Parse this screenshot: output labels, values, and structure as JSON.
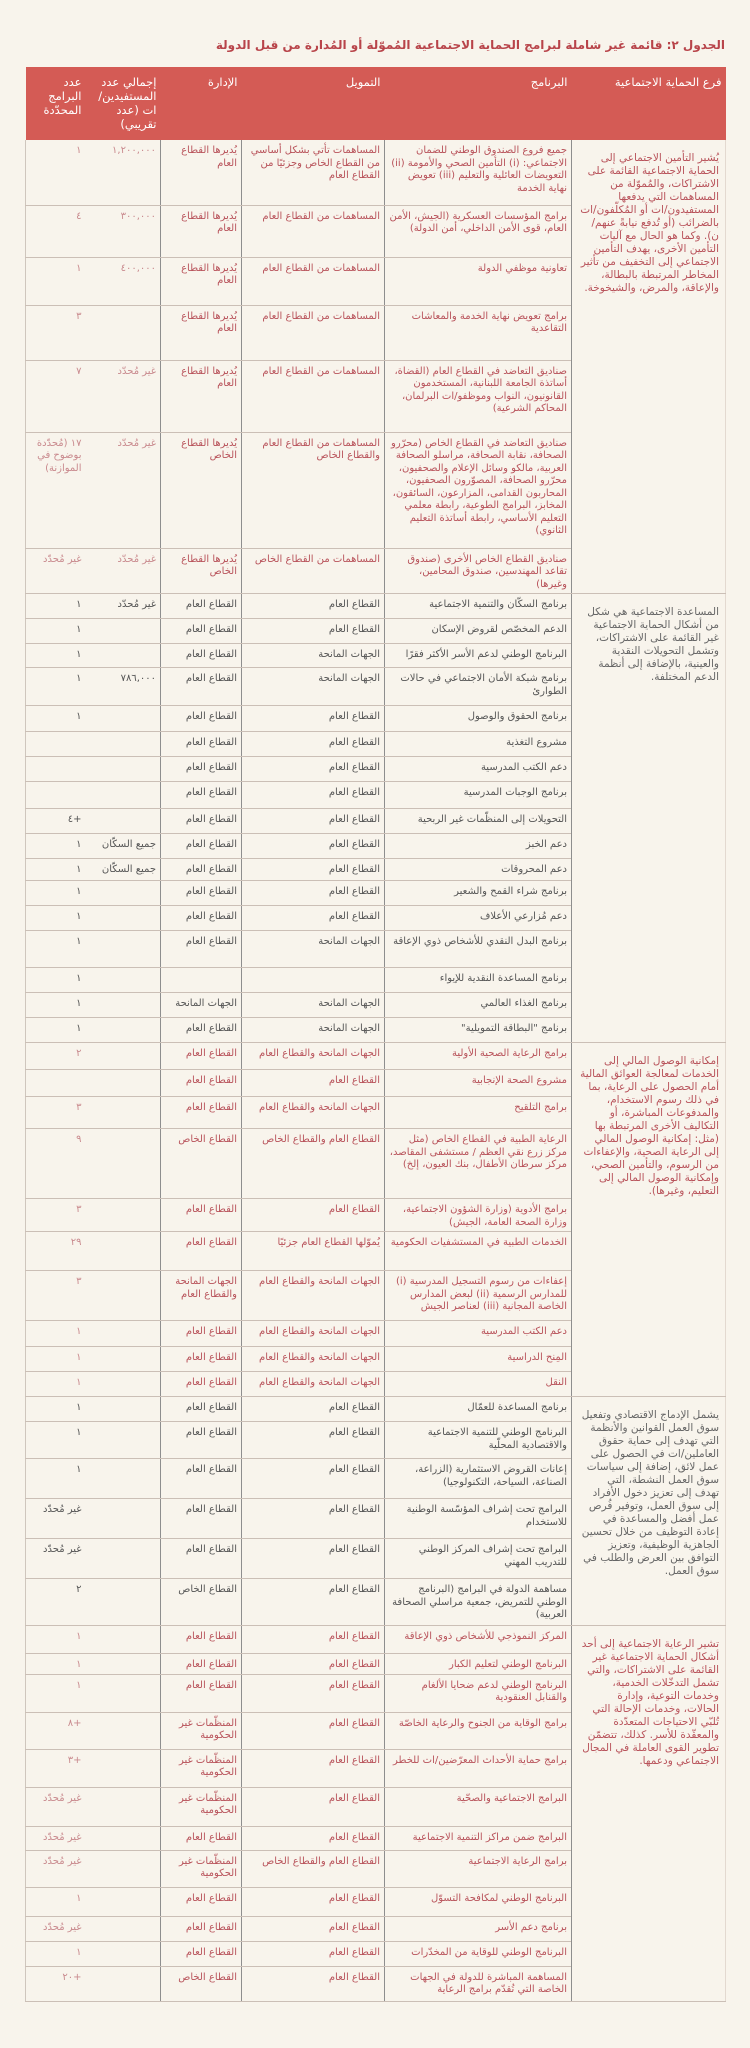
{
  "title": "الجدول ٢: قائمة غير شاملة لبرامج الحماية الاجتماعية المُموّلة أو المُدارة من قبل الدولة",
  "colors": {
    "header_bg": "#d45b55",
    "accent_text": "#b8444a",
    "page_bg": "#f8f4ec"
  },
  "headers": {
    "branch": "فرع الحماية الاجتماعية",
    "program": "البرنامج",
    "funding": "التمويل",
    "admin": "الإدارة",
    "beneficiaries": "إجمالي عدد المستفيدين/ات (عدد تقريبي)",
    "count": "عدد البرامج المحدّدة"
  },
  "groups": [
    {
      "branch": "يُشير التأمين الاجتماعي إلى الحماية الاجتماعية القائمة على الاشتراكات، والمُموّلة من المساهمات التي يدفعها المستفيدون/ات أو المُكلّفون/ات بالضرائب (أو تُدفع نيابةً عنهم/ن). وكما هو الحال مع آليات التأمين الأخرى، يهدف التأمين الاجتماعي إلى التخفيف من تأثير المخاطر المرتبطة بالبطالة، والإعاقة، والمرض، والشيخوخة.",
      "tone": "rose",
      "rows": [
        {
          "program": "جميع فروع الصندوق الوطني للضمان الاجتماعي: (i) التأمين الصحي والأمومة (ii) التعويضات العائلية والتعليم (iii) تعويض نهاية الخدمة",
          "funding": "المساهمات تأتي بشكل أساسي من القطاع الخاص وجزئيًا من القطاع العام",
          "admin": "يُديرها القطاع العام",
          "beneficiaries": "١,٢٠٠,٠٠٠",
          "count": "١"
        },
        {
          "program": "برامج المؤسسات العسكرية (الجيش، الأمن العام، قوى الأمن الداخلي، أمن الدولة)",
          "funding": "المساهمات من القطاع العام",
          "admin": "يُديرها القطاع العام",
          "beneficiaries": "٣٠٠,٠٠٠",
          "count": "٤"
        },
        {
          "program": "تعاونية موظفي الدولة",
          "funding": "المساهمات من القطاع العام",
          "admin": "يُديرها القطاع العام",
          "beneficiaries": "٤٠٠,٠٠٠",
          "count": "١"
        },
        {
          "program": "برامج تعويض نهاية الخدمة والمعاشات التقاعدية",
          "funding": "المساهمات من القطاع العام",
          "admin": "يُديرها القطاع العام",
          "beneficiaries": "",
          "count": "٣"
        },
        {
          "program": "صناديق التعاضد في القطاع العام (القضاة، أساتذة الجامعة اللبنانية، المستخدمون القانونيون، النواب وموظفو/ات البرلمان، المحاكم الشرعية)",
          "funding": "المساهمات من القطاع العام",
          "admin": "يُديرها القطاع العام",
          "beneficiaries": "غير مُحدّد",
          "count": "٧"
        },
        {
          "program": "صناديق التعاضد في القطاع الخاص (محرّرو الصحافة، نقابة الصحافة، مراسلو الصحافة العربية، مالكو وسائل الإعلام والصحفيون، محرّرو الصحافة، المصوّرون الصحفيون، المحاربون القدامى، المزارعون، السائقون، المخابز، البرامج الطوعية، رابطة معلمي التعليم الأساسي، رابطة أساتذة التعليم الثانوي)",
          "funding": "المساهمات من القطاع العام والقطاع الخاص",
          "admin": "يُديرها القطاع الخاص",
          "beneficiaries": "غير مُحدّد",
          "count": "١٧ (مُحدّدة بوضوح في الموازنة)"
        },
        {
          "program": "صناديق القطاع الخاص الأخرى (صندوق تقاعد المهندسين، صندوق المحامين، وغيرها)",
          "funding": "المساهمات من القطاع الخاص",
          "admin": "يُديرها القطاع الخاص",
          "beneficiaries": "غير مُحدّد",
          "count": "غير مُحدّد"
        }
      ]
    },
    {
      "branch": "المساعدة الاجتماعية هي شكل من أشكال الحماية الاجتماعية غير القائمة على الاشتراكات، وتشمل التحويلات النقدية والعينية، بالإضافة إلى أنظمة الدعم المختلفة.",
      "tone": "dark",
      "rows": [
        {
          "program": "برنامج السكّان والتنمية الاجتماعية",
          "funding": "القطاع العام",
          "admin": "القطاع العام",
          "beneficiaries": "غير مُحدّد",
          "count": "١"
        },
        {
          "program": "الدعم المخصّص لقروض الإسكان",
          "funding": "القطاع العام",
          "admin": "القطاع العام",
          "beneficiaries": "",
          "count": "١"
        },
        {
          "program": "البرنامج الوطني لدعم الأسر الأكثر فقرًا",
          "funding": "الجهات المانحة",
          "admin": "القطاع العام",
          "beneficiaries": "",
          "count": "١"
        },
        {
          "program": "برنامج شبكة الأمان الاجتماعي في حالات الطوارئ",
          "funding": "الجهات المانحة",
          "admin": "القطاع العام",
          "beneficiaries": "٧٨٦,٠٠٠",
          "count": "١"
        },
        {
          "program": "برنامج الحقوق والوصول",
          "funding": "القطاع العام",
          "admin": "القطاع العام",
          "beneficiaries": "",
          "count": "١"
        },
        {
          "program": "مشروع التغذية",
          "funding": "القطاع العام",
          "admin": "القطاع العام",
          "beneficiaries": "",
          "count": ""
        },
        {
          "program": "دعم الكتب المدرسية",
          "funding": "القطاع العام",
          "admin": "القطاع العام",
          "beneficiaries": "",
          "count": ""
        },
        {
          "program": "برنامج الوجبات المدرسية",
          "funding": "القطاع العام",
          "admin": "القطاع العام",
          "beneficiaries": "",
          "count": ""
        },
        {
          "program": "التحويلات إلى المنظّمات غير الربحية",
          "funding": "القطاع العام",
          "admin": "القطاع العام",
          "beneficiaries": "",
          "count": "+٤"
        },
        {
          "program": "دعم الخبز",
          "funding": "القطاع العام",
          "admin": "القطاع العام",
          "beneficiaries": "جميع السكّان",
          "count": "١"
        },
        {
          "program": "دعم المحروقات",
          "funding": "القطاع العام",
          "admin": "القطاع العام",
          "beneficiaries": "جميع السكّان",
          "count": "١"
        },
        {
          "program": "برنامج شراء القمح والشعير",
          "funding": "القطاع العام",
          "admin": "القطاع العام",
          "beneficiaries": "",
          "count": "١"
        },
        {
          "program": "دعم مُزارعي الأعلاف",
          "funding": "القطاع العام",
          "admin": "القطاع العام",
          "beneficiaries": "",
          "count": "١"
        },
        {
          "program": "برنامج البدل النقدي للأشخاص ذوي الإعاقة",
          "funding": "الجهات المانحة",
          "admin": "القطاع العام",
          "beneficiaries": "",
          "count": "١"
        },
        {
          "program": "برنامج المساعدة النقدية للإيواء",
          "funding": "",
          "admin": "",
          "beneficiaries": "",
          "count": "١"
        },
        {
          "program": "برنامج الغذاء العالمي",
          "funding": "الجهات المانحة",
          "admin": "الجهات المانحة",
          "beneficiaries": "",
          "count": "١"
        },
        {
          "program": "برنامج \"البطاقة التمويلية\"",
          "funding": "الجهات المانحة",
          "admin": "القطاع العام",
          "beneficiaries": "",
          "count": "١"
        }
      ]
    },
    {
      "branch": "إمكانية الوصول المالي إلى الخدمات لمعالجة العوائق المالية أمام الحصول على الرعاية، بما في ذلك رسوم الاستخدام، والمدفوعات المباشرة، أو التكاليف الأخرى المرتبطة بها (مثل: إمكانية الوصول المالي إلى الرعاية الصحية، والإعفاءات من الرسوم، والتأمين الصحي، وإمكانية الوصول المالي إلى التعليم، وغيرها).",
      "tone": "rose",
      "rows": [
        {
          "program": "برامج الرعاية الصحية الأولية",
          "funding": "الجهات المانحة والقطاع العام",
          "admin": "القطاع العام",
          "beneficiaries": "",
          "count": "٢"
        },
        {
          "program": "مشروع الصحة الإنجابية",
          "funding": "القطاع العام",
          "admin": "القطاع العام",
          "beneficiaries": "",
          "count": ""
        },
        {
          "program": "برامج التلقيح",
          "funding": "الجهات المانحة والقطاع العام",
          "admin": "القطاع العام",
          "beneficiaries": "",
          "count": "٣"
        },
        {
          "program": "الرعاية الطبية في القطاع الخاص (مثل مركز زرع نقي العظم / مستشفى المقاصد، مركز سرطان الأطفال، بنك العيون، إلخ)",
          "funding": "القطاع العام والقطاع الخاص",
          "admin": "القطاع الخاص",
          "beneficiaries": "",
          "count": "٩"
        },
        {
          "program": "برامج الأدوية (وزارة الشؤون الاجتماعية، وزارة الصحة العامة، الجيش)",
          "funding": "القطاع العام",
          "admin": "القطاع العام",
          "beneficiaries": "",
          "count": "٣"
        },
        {
          "program": "الخدمات الطبية في المستشفيات الحكومية",
          "funding": "يُموّلها القطاع العام جزئيًا",
          "admin": "القطاع العام",
          "beneficiaries": "",
          "count": "٢٩"
        },
        {
          "program": "إعفاءات من رسوم التسجيل المدرسية (i) للمدارس الرسمية (ii) لبعض المدارس الخاصة المجانية (iii) لعناصر الجيش",
          "funding": "الجهات المانحة والقطاع العام",
          "admin": "الجهات المانحة والقطاع العام",
          "beneficiaries": "",
          "count": "٣"
        },
        {
          "program": "دعم الكتب المدرسية",
          "funding": "الجهات المانحة والقطاع العام",
          "admin": "القطاع العام",
          "beneficiaries": "",
          "count": "١"
        },
        {
          "program": "المِنح الدراسية",
          "funding": "الجهات المانحة والقطاع العام",
          "admin": "القطاع العام",
          "beneficiaries": "",
          "count": "١"
        },
        {
          "program": "النقل",
          "funding": "الجهات المانحة والقطاع العام",
          "admin": "القطاع العام",
          "beneficiaries": "",
          "count": "١"
        }
      ]
    },
    {
      "branch": "يشمل الإدماج الاقتصادي وتفعيل سوق العمل القوانين والأنظمة التي تهدف إلى حماية حقوق العاملين/ات في الحصول على عمل لائق، إضافة إلى سياسات سوق العمل النشطة، التي تهدف إلى تعزيز دخول الأفراد إلى سوق العمل، وتوفير فُرص عمل أفضل والمساعدة في إعادة التوظيف من خلال تحسين الجاهزية الوظيفية، وتعزيز التوافق بين العرض والطلب في سوق العمل.",
      "tone": "dark",
      "rows": [
        {
          "program": "برنامج المساعدة للعمّال",
          "funding": "القطاع العام",
          "admin": "القطاع العام",
          "beneficiaries": "",
          "count": "١"
        },
        {
          "program": "البرنامج الوطني للتنمية الاجتماعية والاقتصادية المحلّية",
          "funding": "القطاع العام",
          "admin": "القطاع العام",
          "beneficiaries": "",
          "count": "١"
        },
        {
          "program": "إعانات القروض الاستثمارية (الزراعة، الصناعة، السياحة، التكنولوجيا)",
          "funding": "القطاع العام",
          "admin": "القطاع العام",
          "beneficiaries": "",
          "count": "١"
        },
        {
          "program": "البرامج تحت إشراف المؤسّسة الوطنية للاستخدام",
          "funding": "القطاع العام",
          "admin": "القطاع العام",
          "beneficiaries": "",
          "count": "غير مُحدّد"
        },
        {
          "program": "البرامج تحت إشراف المركز الوطني للتدريب المهني",
          "funding": "القطاع العام",
          "admin": "القطاع العام",
          "beneficiaries": "",
          "count": "غير مُحدّد"
        },
        {
          "program": "مساهمة الدولة في البرامج (البرنامج الوطني للتمريض، جمعية مراسلي الصحافة العربية)",
          "funding": "القطاع العام",
          "admin": "القطاع الخاص",
          "beneficiaries": "",
          "count": "٢"
        }
      ]
    },
    {
      "branch": "تشير الرعاية الاجتماعية إلى أحد أشكال الحماية الاجتماعية غير القائمة على الاشتراكات، والتي تشمل التدخّلات الخدمية، وخدمات التوعية، وإدارة الحالات، وخدمات الإحالة التي تُلبّي الاحتياجات المتعدّدة والمعقّدة للأسر. كذلك، تتضمّن تطوير القوى العاملة في المجال الاجتماعي ودعمها.",
      "tone": "rose",
      "rows": [
        {
          "program": "المركز النموذجي للأشخاص ذوي الإعاقة",
          "funding": "القطاع العام",
          "admin": "القطاع العام",
          "beneficiaries": "",
          "count": "١"
        },
        {
          "program": "البرنامج الوطني لتعليم الكبار",
          "funding": "القطاع العام",
          "admin": "القطاع العام",
          "beneficiaries": "",
          "count": "١"
        },
        {
          "program": "البرنامج الوطني لدعم ضحايا الألغام والقنابل العنقودية",
          "funding": "القطاع العام",
          "admin": "القطاع العام",
          "beneficiaries": "",
          "count": "١"
        },
        {
          "program": "برامج الوقاية من الجنوح والرعاية الخاصّة",
          "funding": "القطاع العام",
          "admin": "المنظّمات غير الحكومية",
          "beneficiaries": "",
          "count": "+٨"
        },
        {
          "program": "برامج حماية الأحداث المعرّضين/ات للخطر",
          "funding": "القطاع العام",
          "admin": "المنظّمات غير الحكومية",
          "beneficiaries": "",
          "count": "+٣"
        },
        {
          "program": "البرامج الاجتماعية والصحّية",
          "funding": "القطاع العام",
          "admin": "المنظّمات غير الحكومية",
          "beneficiaries": "",
          "count": "غير مُحدّد"
        },
        {
          "program": "البرامج ضمن مراكز التنمية الاجتماعية",
          "funding": "القطاع العام",
          "admin": "القطاع العام",
          "beneficiaries": "",
          "count": "غير مُحدّد"
        },
        {
          "program": "برامج الرعاية الاجتماعية",
          "funding": "القطاع العام والقطاع الخاص",
          "admin": "المنظّمات غير الحكومية",
          "beneficiaries": "",
          "count": "غير مُحدّد"
        },
        {
          "program": "البرنامج الوطني لمكافحة التسوّل",
          "funding": "القطاع العام",
          "admin": "القطاع العام",
          "beneficiaries": "",
          "count": "١"
        },
        {
          "program": "برنامج دعم الأسر",
          "funding": "القطاع العام",
          "admin": "القطاع العام",
          "beneficiaries": "",
          "count": "غير مُحدّد"
        },
        {
          "program": "البرنامج الوطني للوقاية من المخدّرات",
          "funding": "القطاع العام",
          "admin": "القطاع العام",
          "beneficiaries": "",
          "count": "١"
        },
        {
          "program": "المساهمة المباشرة للدولة في الجهات الخاصة التي تُقدّم برامج الرعاية",
          "funding": "القطاع العام",
          "admin": "القطاع الخاص",
          "beneficiaries": "",
          "count": "+٢٠"
        }
      ]
    }
  ]
}
